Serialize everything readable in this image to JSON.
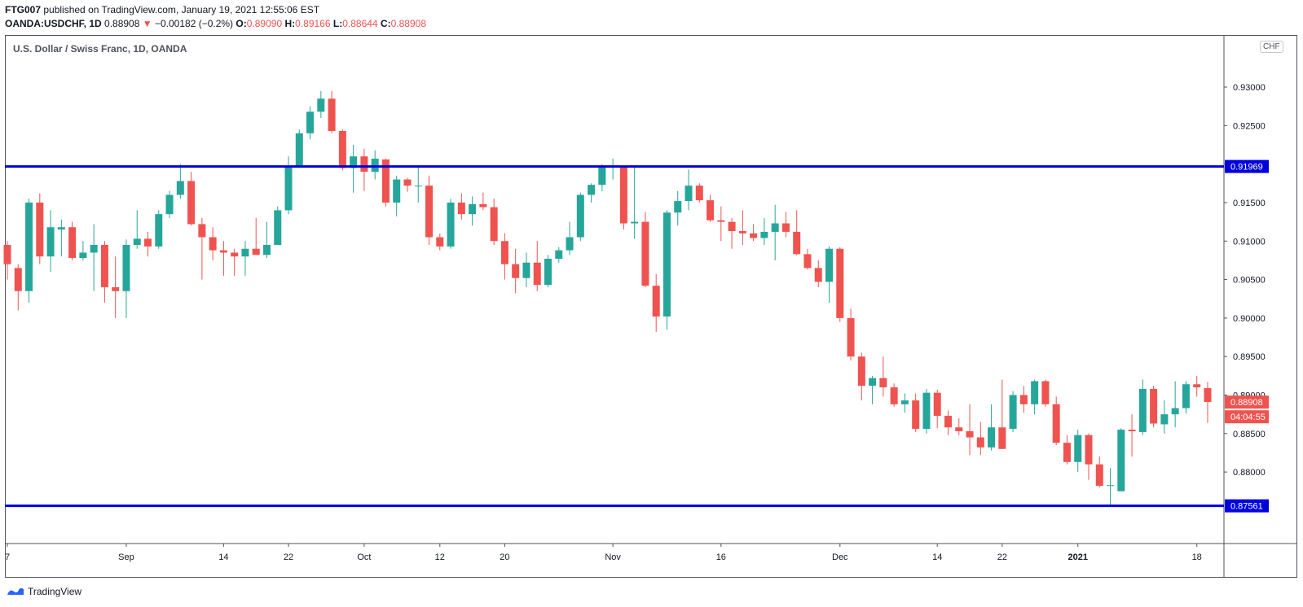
{
  "header": {
    "publisher": "FTG007",
    "published_text": "published on TradingView.com, January 19, 2021 12:55:06 EST",
    "symbol": "OANDA:USDCHF, 1D",
    "last": "0.88908",
    "change": "−0.00182 (−0.2%)",
    "open_label": "O:",
    "open": "0.89090",
    "high_label": "H:",
    "high": "0.89166",
    "low_label": "L:",
    "low": "0.88644",
    "close_label": "C:",
    "close": "0.88908"
  },
  "chart_title": "U.S. Dollar / Swiss Franc, 1D, OANDA",
  "currency_badge": "CHF",
  "footer": {
    "brand": "TradingView",
    "logo_icon": "tradingview-logo-icon"
  },
  "colors": {
    "up": "#26a69a",
    "down": "#ef5350",
    "level_line": "#0000dd",
    "axis_text": "#131722"
  },
  "chart_data": {
    "type": "candlestick",
    "title": "U.S. Dollar / Swiss Franc, 1D, OANDA",
    "ylim": [
      0.8705,
      0.9355
    ],
    "y_ticks": [
      "0.93000",
      "0.92500",
      "0.92000",
      "0.91500",
      "0.91000",
      "0.90500",
      "0.90000",
      "0.89500",
      "0.89000",
      "0.88500",
      "0.88000"
    ],
    "y_tick_values": [
      0.93,
      0.925,
      0.92,
      0.915,
      0.91,
      0.905,
      0.9,
      0.895,
      0.89,
      0.885,
      0.88
    ],
    "x_tick_labels": [
      {
        "label": "7",
        "index": 0
      },
      {
        "label": "Sep",
        "index": 11
      },
      {
        "label": "14",
        "index": 20
      },
      {
        "label": "22",
        "index": 26
      },
      {
        "label": "Oct",
        "index": 33
      },
      {
        "label": "12",
        "index": 40
      },
      {
        "label": "20",
        "index": 46
      },
      {
        "label": "Nov",
        "index": 56
      },
      {
        "label": "16",
        "index": 66
      },
      {
        "label": "Dec",
        "index": 77
      },
      {
        "label": "14",
        "index": 86
      },
      {
        "label": "22",
        "index": 92
      },
      {
        "label": "2021",
        "index": 99
      },
      {
        "label": "18",
        "index": 110
      }
    ],
    "levels": [
      {
        "value": 0.91969,
        "label": "0.91969"
      },
      {
        "value": 0.87561,
        "label": "0.87561"
      }
    ],
    "last_price": {
      "value": 0.88908,
      "label": "0.88908",
      "countdown": "04:04:55"
    },
    "candles": [
      {
        "o": 0.9095,
        "h": 0.91,
        "l": 0.905,
        "c": 0.907
      },
      {
        "o": 0.9065,
        "h": 0.907,
        "l": 0.901,
        "c": 0.9035
      },
      {
        "o": 0.9035,
        "h": 0.9155,
        "l": 0.902,
        "c": 0.915
      },
      {
        "o": 0.915,
        "h": 0.9162,
        "l": 0.907,
        "c": 0.908
      },
      {
        "o": 0.908,
        "h": 0.914,
        "l": 0.906,
        "c": 0.9118
      },
      {
        "o": 0.9115,
        "h": 0.9128,
        "l": 0.908,
        "c": 0.9118
      },
      {
        "o": 0.9118,
        "h": 0.9125,
        "l": 0.9075,
        "c": 0.9078
      },
      {
        "o": 0.9078,
        "h": 0.91,
        "l": 0.9075,
        "c": 0.9085
      },
      {
        "o": 0.9085,
        "h": 0.9122,
        "l": 0.9035,
        "c": 0.9095
      },
      {
        "o": 0.9095,
        "h": 0.91,
        "l": 0.902,
        "c": 0.904
      },
      {
        "o": 0.904,
        "h": 0.908,
        "l": 0.9,
        "c": 0.9035
      },
      {
        "o": 0.9035,
        "h": 0.9102,
        "l": 0.9,
        "c": 0.9095
      },
      {
        "o": 0.9095,
        "h": 0.914,
        "l": 0.909,
        "c": 0.9103
      },
      {
        "o": 0.9103,
        "h": 0.9112,
        "l": 0.908,
        "c": 0.9093
      },
      {
        "o": 0.9093,
        "h": 0.914,
        "l": 0.909,
        "c": 0.9135
      },
      {
        "o": 0.9135,
        "h": 0.9165,
        "l": 0.913,
        "c": 0.916
      },
      {
        "o": 0.916,
        "h": 0.92,
        "l": 0.9155,
        "c": 0.9178
      },
      {
        "o": 0.9178,
        "h": 0.919,
        "l": 0.912,
        "c": 0.9122
      },
      {
        "o": 0.9122,
        "h": 0.913,
        "l": 0.905,
        "c": 0.9105
      },
      {
        "o": 0.9105,
        "h": 0.9118,
        "l": 0.9075,
        "c": 0.9088
      },
      {
        "o": 0.9088,
        "h": 0.91,
        "l": 0.9055,
        "c": 0.9085
      },
      {
        "o": 0.9085,
        "h": 0.909,
        "l": 0.9055,
        "c": 0.908
      },
      {
        "o": 0.908,
        "h": 0.91,
        "l": 0.9055,
        "c": 0.909
      },
      {
        "o": 0.909,
        "h": 0.913,
        "l": 0.9082,
        "c": 0.9082
      },
      {
        "o": 0.9082,
        "h": 0.9125,
        "l": 0.9078,
        "c": 0.9095
      },
      {
        "o": 0.9095,
        "h": 0.9145,
        "l": 0.9095,
        "c": 0.914
      },
      {
        "o": 0.914,
        "h": 0.921,
        "l": 0.9135,
        "c": 0.9198
      },
      {
        "o": 0.9198,
        "h": 0.9245,
        "l": 0.9195,
        "c": 0.924
      },
      {
        "o": 0.924,
        "h": 0.9275,
        "l": 0.9232,
        "c": 0.9268
      },
      {
        "o": 0.9268,
        "h": 0.9295,
        "l": 0.926,
        "c": 0.9285
      },
      {
        "o": 0.9285,
        "h": 0.9295,
        "l": 0.924,
        "c": 0.9243
      },
      {
        "o": 0.9243,
        "h": 0.9245,
        "l": 0.9192,
        "c": 0.9195
      },
      {
        "o": 0.9195,
        "h": 0.9225,
        "l": 0.9163,
        "c": 0.921
      },
      {
        "o": 0.921,
        "h": 0.922,
        "l": 0.9165,
        "c": 0.919
      },
      {
        "o": 0.919,
        "h": 0.9218,
        "l": 0.918,
        "c": 0.9207
      },
      {
        "o": 0.9206,
        "h": 0.9207,
        "l": 0.9145,
        "c": 0.915
      },
      {
        "o": 0.915,
        "h": 0.9185,
        "l": 0.9132,
        "c": 0.918
      },
      {
        "o": 0.918,
        "h": 0.9182,
        "l": 0.9164,
        "c": 0.9172
      },
      {
        "o": 0.9172,
        "h": 0.9198,
        "l": 0.915,
        "c": 0.9172
      },
      {
        "o": 0.9172,
        "h": 0.9185,
        "l": 0.9095,
        "c": 0.9105
      },
      {
        "o": 0.9105,
        "h": 0.911,
        "l": 0.9088,
        "c": 0.9093
      },
      {
        "o": 0.9093,
        "h": 0.9155,
        "l": 0.909,
        "c": 0.915
      },
      {
        "o": 0.915,
        "h": 0.9162,
        "l": 0.9128,
        "c": 0.9135
      },
      {
        "o": 0.9135,
        "h": 0.9158,
        "l": 0.912,
        "c": 0.9148
      },
      {
        "o": 0.9148,
        "h": 0.9163,
        "l": 0.914,
        "c": 0.9144
      },
      {
        "o": 0.9144,
        "h": 0.9155,
        "l": 0.9095,
        "c": 0.91
      },
      {
        "o": 0.91,
        "h": 0.911,
        "l": 0.905,
        "c": 0.907
      },
      {
        "o": 0.907,
        "h": 0.909,
        "l": 0.9032,
        "c": 0.9052
      },
      {
        "o": 0.9052,
        "h": 0.9085,
        "l": 0.904,
        "c": 0.9072
      },
      {
        "o": 0.9072,
        "h": 0.91,
        "l": 0.9035,
        "c": 0.9043
      },
      {
        "o": 0.9043,
        "h": 0.9082,
        "l": 0.904,
        "c": 0.9077
      },
      {
        "o": 0.9077,
        "h": 0.9092,
        "l": 0.9072,
        "c": 0.9088
      },
      {
        "o": 0.9088,
        "h": 0.9125,
        "l": 0.9082,
        "c": 0.9105
      },
      {
        "o": 0.9105,
        "h": 0.9163,
        "l": 0.91,
        "c": 0.916
      },
      {
        "o": 0.916,
        "h": 0.9175,
        "l": 0.915,
        "c": 0.9173
      },
      {
        "o": 0.9173,
        "h": 0.92,
        "l": 0.9165,
        "c": 0.9197
      },
      {
        "o": 0.9197,
        "h": 0.9207,
        "l": 0.918,
        "c": 0.9198
      },
      {
        "o": 0.9197,
        "h": 0.9198,
        "l": 0.9115,
        "c": 0.9123
      },
      {
        "o": 0.9123,
        "h": 0.9198,
        "l": 0.9103,
        "c": 0.9125
      },
      {
        "o": 0.9125,
        "h": 0.9138,
        "l": 0.904,
        "c": 0.9042
      },
      {
        "o": 0.9042,
        "h": 0.9057,
        "l": 0.8982,
        "c": 0.9002
      },
      {
        "o": 0.9002,
        "h": 0.914,
        "l": 0.8985,
        "c": 0.9137
      },
      {
        "o": 0.9137,
        "h": 0.9165,
        "l": 0.912,
        "c": 0.9152
      },
      {
        "o": 0.9152,
        "h": 0.9193,
        "l": 0.914,
        "c": 0.9172
      },
      {
        "o": 0.9172,
        "h": 0.9175,
        "l": 0.915,
        "c": 0.9153
      },
      {
        "o": 0.9153,
        "h": 0.916,
        "l": 0.9125,
        "c": 0.9127
      },
      {
        "o": 0.9127,
        "h": 0.9145,
        "l": 0.91,
        "c": 0.9125
      },
      {
        "o": 0.9125,
        "h": 0.913,
        "l": 0.909,
        "c": 0.9113
      },
      {
        "o": 0.9113,
        "h": 0.914,
        "l": 0.9095,
        "c": 0.911
      },
      {
        "o": 0.911,
        "h": 0.9122,
        "l": 0.91,
        "c": 0.9104
      },
      {
        "o": 0.9104,
        "h": 0.913,
        "l": 0.9095,
        "c": 0.9112
      },
      {
        "o": 0.9112,
        "h": 0.9147,
        "l": 0.9075,
        "c": 0.9123
      },
      {
        "o": 0.9123,
        "h": 0.9138,
        "l": 0.9105,
        "c": 0.9112
      },
      {
        "o": 0.9112,
        "h": 0.914,
        "l": 0.9082,
        "c": 0.9083
      },
      {
        "o": 0.9083,
        "h": 0.909,
        "l": 0.9063,
        "c": 0.9065
      },
      {
        "o": 0.9065,
        "h": 0.9075,
        "l": 0.904,
        "c": 0.9047
      },
      {
        "o": 0.9047,
        "h": 0.9093,
        "l": 0.902,
        "c": 0.909
      },
      {
        "o": 0.909,
        "h": 0.9092,
        "l": 0.8995,
        "c": 0.9
      },
      {
        "o": 0.9,
        "h": 0.9012,
        "l": 0.8945,
        "c": 0.895
      },
      {
        "o": 0.895,
        "h": 0.8955,
        "l": 0.8893,
        "c": 0.8912
      },
      {
        "o": 0.8912,
        "h": 0.8925,
        "l": 0.8888,
        "c": 0.8922
      },
      {
        "o": 0.8922,
        "h": 0.895,
        "l": 0.8898,
        "c": 0.891
      },
      {
        "o": 0.891,
        "h": 0.8915,
        "l": 0.8885,
        "c": 0.8888
      },
      {
        "o": 0.8888,
        "h": 0.8902,
        "l": 0.8877,
        "c": 0.8893
      },
      {
        "o": 0.8893,
        "h": 0.8902,
        "l": 0.8852,
        "c": 0.8856
      },
      {
        "o": 0.8856,
        "h": 0.8908,
        "l": 0.885,
        "c": 0.8903
      },
      {
        "o": 0.8903,
        "h": 0.8907,
        "l": 0.8857,
        "c": 0.8873
      },
      {
        "o": 0.8873,
        "h": 0.888,
        "l": 0.8848,
        "c": 0.8858
      },
      {
        "o": 0.8858,
        "h": 0.887,
        "l": 0.8848,
        "c": 0.8853
      },
      {
        "o": 0.8853,
        "h": 0.8888,
        "l": 0.8822,
        "c": 0.8845
      },
      {
        "o": 0.8845,
        "h": 0.8865,
        "l": 0.8822,
        "c": 0.8832
      },
      {
        "o": 0.8832,
        "h": 0.8888,
        "l": 0.8828,
        "c": 0.8858
      },
      {
        "o": 0.8858,
        "h": 0.892,
        "l": 0.883,
        "c": 0.883
      },
      {
        "o": 0.8856,
        "h": 0.8905,
        "l": 0.8852,
        "c": 0.89
      },
      {
        "o": 0.89,
        "h": 0.8912,
        "l": 0.8877,
        "c": 0.8888
      },
      {
        "o": 0.8888,
        "h": 0.892,
        "l": 0.8875,
        "c": 0.8918
      },
      {
        "o": 0.8918,
        "h": 0.892,
        "l": 0.8885,
        "c": 0.8888
      },
      {
        "o": 0.8888,
        "h": 0.8898,
        "l": 0.8835,
        "c": 0.8838
      },
      {
        "o": 0.8838,
        "h": 0.8848,
        "l": 0.881,
        "c": 0.8813
      },
      {
        "o": 0.8813,
        "h": 0.8855,
        "l": 0.88,
        "c": 0.8848
      },
      {
        "o": 0.8848,
        "h": 0.885,
        "l": 0.879,
        "c": 0.881
      },
      {
        "o": 0.881,
        "h": 0.882,
        "l": 0.878,
        "c": 0.8782
      },
      {
        "o": 0.8782,
        "h": 0.8805,
        "l": 0.8756,
        "c": 0.8783
      },
      {
        "o": 0.8775,
        "h": 0.8857,
        "l": 0.8775,
        "c": 0.8855
      },
      {
        "o": 0.8855,
        "h": 0.8875,
        "l": 0.882,
        "c": 0.8853
      },
      {
        "o": 0.8852,
        "h": 0.892,
        "l": 0.8848,
        "c": 0.8908
      },
      {
        "o": 0.8908,
        "h": 0.8912,
        "l": 0.8858,
        "c": 0.8863
      },
      {
        "o": 0.8862,
        "h": 0.8893,
        "l": 0.885,
        "c": 0.8875
      },
      {
        "o": 0.8875,
        "h": 0.8918,
        "l": 0.8858,
        "c": 0.8883
      },
      {
        "o": 0.8883,
        "h": 0.8918,
        "l": 0.8876,
        "c": 0.8914
      },
      {
        "o": 0.8914,
        "h": 0.8925,
        "l": 0.8898,
        "c": 0.891
      },
      {
        "o": 0.8909,
        "h": 0.8917,
        "l": 0.8864,
        "c": 0.8891
      }
    ]
  }
}
